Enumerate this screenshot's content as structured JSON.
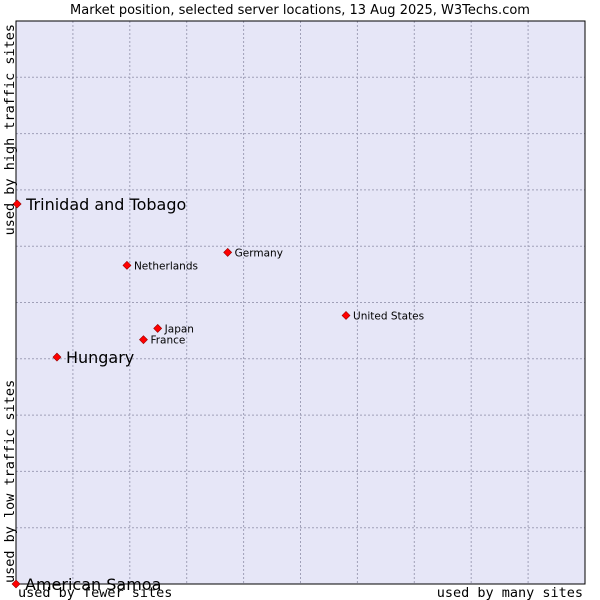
{
  "chart_data": {
    "type": "scatter",
    "title": "Market position, selected server locations, 13 Aug 2025, W3Techs.com",
    "xlabel_low": "used by fewer sites",
    "xlabel_high": "used by many sites",
    "ylabel_low": "used by low traffic sites",
    "ylabel_high": "used by high traffic sites",
    "xlim": [
      0,
      100
    ],
    "ylim": [
      0,
      100
    ],
    "grid": true,
    "colors": {
      "plot_background": "#e6e6f7",
      "grid": "#a0a0b8",
      "border": "#000000",
      "marker": "#ff0000",
      "marker_edge": "#990000"
    },
    "points": [
      {
        "name": "Trinidad and Tobago",
        "x": 0.2,
        "y": 67.5,
        "highlight": true
      },
      {
        "name": "Hungary",
        "x": 7.2,
        "y": 40.3,
        "highlight": true
      },
      {
        "name": "American Samoa",
        "x": 0.0,
        "y": 0.0,
        "highlight": true
      },
      {
        "name": "Germany",
        "x": 37.2,
        "y": 58.9,
        "highlight": false
      },
      {
        "name": "Netherlands",
        "x": 19.5,
        "y": 56.6,
        "highlight": false
      },
      {
        "name": "United States",
        "x": 58.0,
        "y": 47.7,
        "highlight": false
      },
      {
        "name": "Japan",
        "x": 24.9,
        "y": 45.4,
        "highlight": false
      },
      {
        "name": "France",
        "x": 22.4,
        "y": 43.4,
        "highlight": false
      }
    ]
  }
}
